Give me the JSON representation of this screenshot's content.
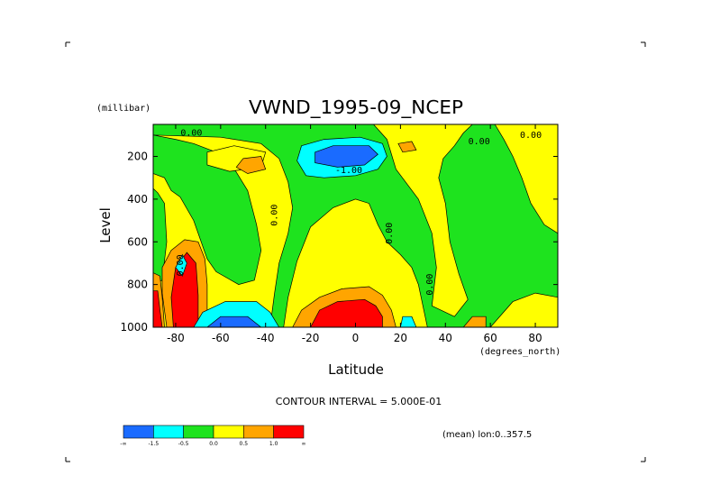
{
  "chart_data": {
    "type": "heatmap",
    "title": "VWND_1995-09_NCEP",
    "xlabel": "Latitude",
    "ylabel": "Level",
    "y_units": "(millibar)",
    "x_units": "(degrees_north)",
    "xlim": [
      -90,
      90
    ],
    "ylim": [
      1000,
      50
    ],
    "x_ticks": [
      -80,
      -60,
      -40,
      -20,
      0,
      20,
      40,
      60,
      80
    ],
    "x_tick_labels": [
      "-80",
      "-60",
      "-40",
      "-20",
      "0",
      "20",
      "40",
      "60",
      "80"
    ],
    "y_ticks": [
      200,
      400,
      600,
      800,
      1000
    ],
    "y_tick_labels": [
      "200",
      "400",
      "600",
      "800",
      "1000"
    ],
    "contour_interval_label": "CONTOUR INTERVAL = 5.000E-01",
    "mean_label": "(mean) lon:0..357.5",
    "contour_labels": [
      {
        "text": "0.00",
        "lat": -73,
        "lev": 90,
        "rot": 0
      },
      {
        "text": "-1.00",
        "lat": -3,
        "lev": 265,
        "rot": 0
      },
      {
        "text": "0.00",
        "lat": 55,
        "lev": 130,
        "rot": 0
      },
      {
        "text": "0.00",
        "lat": 78,
        "lev": 100,
        "rot": 0
      },
      {
        "text": "0.00",
        "lat": -36,
        "lev": 475,
        "rot": -90
      },
      {
        "text": "0.00",
        "lat": 15,
        "lev": 560,
        "rot": -90
      },
      {
        "text": "0.00",
        "lat": 33,
        "lev": 800,
        "rot": -90
      },
      {
        "text": "0.00",
        "lat": -78,
        "lev": 710,
        "rot": -90
      },
      {
        "text": "0.00",
        "lat": 91,
        "lev": 600,
        "rot": 90
      }
    ],
    "color_levels": [
      {
        "color": "#1a6bff",
        "bound": "-∞"
      },
      {
        "color": "#00ffff",
        "bound": "-1.5"
      },
      {
        "color": "#1ee31e",
        "bound": "-0.5"
      },
      {
        "color": "#ffff00",
        "bound": "0.0"
      },
      {
        "color": "#ffa500",
        "bound": "0.5"
      },
      {
        "color": "#ff0000",
        "bound": "1.0"
      }
    ],
    "colorbar_tick_labels": [
      "-∞",
      "-1.5",
      "-0.5",
      "0.0",
      "0.5",
      "1.0",
      "∞"
    ],
    "regions": [
      {
        "color": "#ffff00",
        "pts": [
          [
            -90,
            800
          ],
          [
            -86,
            780
          ],
          [
            -84,
            600
          ],
          [
            -85,
            420
          ],
          [
            -88,
            370
          ],
          [
            -90,
            350
          ],
          [
            -90,
            280
          ],
          [
            -85,
            300
          ],
          [
            -82,
            360
          ],
          [
            -78,
            390
          ],
          [
            -72,
            500
          ],
          [
            -66,
            680
          ],
          [
            -62,
            740
          ],
          [
            -52,
            800
          ],
          [
            -45,
            780
          ],
          [
            -42,
            640
          ],
          [
            -44,
            520
          ],
          [
            -48,
            360
          ],
          [
            -55,
            240
          ],
          [
            -62,
            180
          ],
          [
            -72,
            140
          ],
          [
            -80,
            120
          ],
          [
            -90,
            100
          ],
          [
            -60,
            110
          ],
          [
            -42,
            140
          ],
          [
            -34,
            210
          ],
          [
            -30,
            320
          ],
          [
            -28,
            440
          ],
          [
            -30,
            560
          ],
          [
            -34,
            700
          ],
          [
            -36,
            840
          ],
          [
            -38,
            1000
          ],
          [
            -90,
            1000
          ]
        ]
      },
      {
        "color": "#ffff00",
        "pts": [
          [
            -32,
            1000
          ],
          [
            -30,
            860
          ],
          [
            -26,
            690
          ],
          [
            -20,
            530
          ],
          [
            -10,
            440
          ],
          [
            0,
            400
          ],
          [
            6,
            420
          ],
          [
            10,
            520
          ],
          [
            14,
            600
          ],
          [
            20,
            660
          ],
          [
            25,
            720
          ],
          [
            28,
            800
          ],
          [
            30,
            900
          ],
          [
            32,
            1000
          ]
        ]
      },
      {
        "color": "#ffff00",
        "pts": [
          [
            8,
            50
          ],
          [
            14,
            120
          ],
          [
            18,
            260
          ],
          [
            28,
            400
          ],
          [
            34,
            560
          ],
          [
            36,
            720
          ],
          [
            34,
            900
          ],
          [
            44,
            950
          ],
          [
            50,
            870
          ],
          [
            46,
            750
          ],
          [
            42,
            600
          ],
          [
            40,
            420
          ],
          [
            37,
            300
          ],
          [
            39,
            210
          ],
          [
            44,
            150
          ],
          [
            48,
            90
          ],
          [
            52,
            50
          ]
        ]
      },
      {
        "color": "#ffff00",
        "pts": [
          [
            62,
            50
          ],
          [
            66,
            120
          ],
          [
            70,
            200
          ],
          [
            74,
            300
          ],
          [
            78,
            420
          ],
          [
            84,
            520
          ],
          [
            90,
            560
          ],
          [
            90,
            50
          ]
        ]
      },
      {
        "color": "#ffff00",
        "pts": [
          [
            60,
            1000
          ],
          [
            70,
            880
          ],
          [
            80,
            840
          ],
          [
            90,
            860
          ],
          [
            90,
            1000
          ]
        ]
      },
      {
        "color": "#ffff00",
        "pts": [
          [
            -66,
            180
          ],
          [
            -54,
            150
          ],
          [
            -40,
            180
          ],
          [
            -42,
            250
          ],
          [
            -56,
            270
          ],
          [
            -66,
            240
          ]
        ]
      },
      {
        "color": "#ffa500",
        "pts": [
          [
            -50,
            210
          ],
          [
            -42,
            200
          ],
          [
            -40,
            260
          ],
          [
            -48,
            280
          ],
          [
            -53,
            250
          ]
        ]
      },
      {
        "color": "#ffa500",
        "pts": [
          [
            -84,
            1000
          ],
          [
            -86,
            840
          ],
          [
            -86,
            720
          ],
          [
            -82,
            640
          ],
          [
            -76,
            590
          ],
          [
            -70,
            600
          ],
          [
            -67,
            680
          ],
          [
            -66,
            800
          ],
          [
            -66,
            1000
          ]
        ]
      },
      {
        "color": "#ffa500",
        "pts": [
          [
            -91,
            1000
          ],
          [
            -91,
            740
          ],
          [
            -87,
            760
          ],
          [
            -86,
            860
          ],
          [
            -85,
            1000
          ]
        ]
      },
      {
        "color": "#ffa500",
        "pts": [
          [
            -28,
            1000
          ],
          [
            -24,
            920
          ],
          [
            -16,
            860
          ],
          [
            -6,
            820
          ],
          [
            6,
            810
          ],
          [
            12,
            850
          ],
          [
            16,
            920
          ],
          [
            18,
            1000
          ]
        ]
      },
      {
        "color": "#ffa500",
        "pts": [
          [
            19,
            140
          ],
          [
            25,
            130
          ],
          [
            27,
            170
          ],
          [
            21,
            180
          ]
        ]
      },
      {
        "color": "#ffa500",
        "pts": [
          [
            48,
            1000
          ],
          [
            52,
            950
          ],
          [
            58,
            950
          ],
          [
            58,
            1000
          ]
        ]
      },
      {
        "color": "#ff0000",
        "pts": [
          [
            -81,
            1000
          ],
          [
            -82,
            860
          ],
          [
            -80,
            720
          ],
          [
            -75,
            650
          ],
          [
            -71,
            700
          ],
          [
            -70,
            850
          ],
          [
            -70,
            1000
          ]
        ]
      },
      {
        "color": "#ff0000",
        "pts": [
          [
            -91,
            1000
          ],
          [
            -91,
            830
          ],
          [
            -88,
            830
          ],
          [
            -87,
            920
          ],
          [
            -86,
            1000
          ]
        ]
      },
      {
        "color": "#ff0000",
        "pts": [
          [
            -20,
            1000
          ],
          [
            -16,
            920
          ],
          [
            -8,
            880
          ],
          [
            4,
            870
          ],
          [
            9,
            900
          ],
          [
            12,
            950
          ],
          [
            12,
            1000
          ]
        ]
      },
      {
        "color": "#00ffff",
        "pts": [
          [
            -24,
            150
          ],
          [
            -14,
            120
          ],
          [
            2,
            110
          ],
          [
            12,
            140
          ],
          [
            14,
            200
          ],
          [
            10,
            260
          ],
          [
            0,
            290
          ],
          [
            -14,
            300
          ],
          [
            -22,
            290
          ],
          [
            -26,
            220
          ]
        ]
      },
      {
        "color": "#1a6bff",
        "pts": [
          [
            -18,
            180
          ],
          [
            -10,
            150
          ],
          [
            6,
            150
          ],
          [
            10,
            190
          ],
          [
            4,
            240
          ],
          [
            -8,
            250
          ],
          [
            -18,
            230
          ]
        ]
      },
      {
        "color": "#00ffff",
        "pts": [
          [
            -72,
            1000
          ],
          [
            -68,
            930
          ],
          [
            -58,
            880
          ],
          [
            -44,
            880
          ],
          [
            -38,
            930
          ],
          [
            -34,
            1000
          ]
        ]
      },
      {
        "color": "#1a6bff",
        "pts": [
          [
            -66,
            1000
          ],
          [
            -60,
            950
          ],
          [
            -48,
            950
          ],
          [
            -42,
            1000
          ]
        ]
      },
      {
        "color": "#00ffff",
        "pts": [
          [
            -80,
            720
          ],
          [
            -77,
            660
          ],
          [
            -75,
            700
          ],
          [
            -77,
            760
          ]
        ]
      },
      {
        "color": "#00ffff",
        "pts": [
          [
            20,
            1000
          ],
          [
            21,
            950
          ],
          [
            25,
            950
          ],
          [
            27,
            1000
          ]
        ]
      }
    ]
  }
}
